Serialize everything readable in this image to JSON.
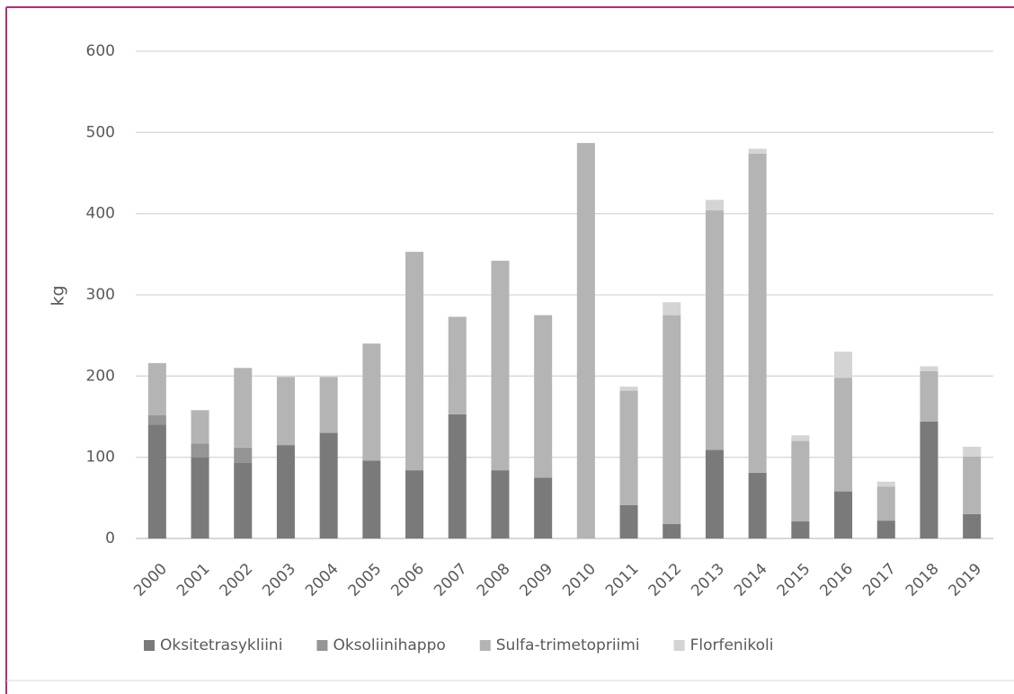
{
  "chart_data": {
    "type": "stacked_bar",
    "y_label": "kg",
    "categories": [
      "2000",
      "2001",
      "2002",
      "2003",
      "2004",
      "2005",
      "2006",
      "2007",
      "2008",
      "2009",
      "2010",
      "2011",
      "2012",
      "2013",
      "2014",
      "2015",
      "2016",
      "2017",
      "2018",
      "2019"
    ],
    "series": [
      {
        "name": "Oksitetrasykliini",
        "color": "#7a7a7a",
        "values": [
          140,
          100,
          93,
          115,
          130,
          96,
          84,
          153,
          84,
          75,
          0,
          41,
          18,
          109,
          81,
          21,
          58,
          22,
          144,
          30
        ]
      },
      {
        "name": "Oksoliinihappo",
        "color": "#959595",
        "values": [
          12,
          17,
          19,
          0,
          0,
          0,
          0,
          0,
          0,
          0,
          0,
          0,
          0,
          0,
          0,
          0,
          0,
          0,
          0,
          0
        ]
      },
      {
        "name": "Sulfa-trimetopriimi",
        "color": "#b4b4b4",
        "values": [
          64,
          41,
          98,
          84,
          69,
          144,
          269,
          120,
          258,
          200,
          487,
          141,
          257,
          295,
          393,
          99,
          140,
          42,
          62,
          71
        ]
      },
      {
        "name": "Florfenikoli",
        "color": "#d4d4d4",
        "values": [
          0,
          0,
          0,
          0,
          0,
          0,
          0,
          0,
          0,
          0,
          0,
          5,
          16,
          13,
          6,
          7,
          32,
          6,
          6,
          12
        ]
      }
    ],
    "ylim": [
      0,
      600
    ],
    "yticks": [
      0,
      100,
      200,
      300,
      400,
      500,
      600
    ],
    "grid": true,
    "legend": "bottom"
  }
}
